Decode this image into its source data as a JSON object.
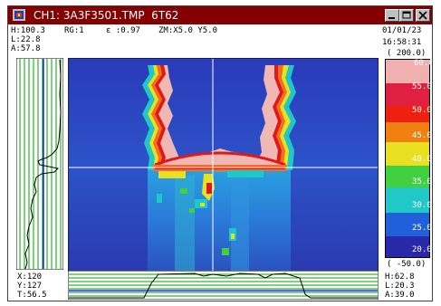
{
  "window": {
    "title": "CH1: 3A3F3501.TMP  6T62",
    "controls": {
      "minimize_icon": "minimize-icon",
      "maximize_icon": "maximize-icon",
      "close_icon": "close-icon"
    }
  },
  "header": {
    "high_readout": "H:100.3",
    "low_readout": "L:22.8",
    "avg_readout": "A:57.8",
    "range_readout": "RG:1",
    "emissivity_readout": "ε :0.97",
    "zoom_readout": "ZM:X5.0 Y5.0",
    "date": "01/01/23",
    "time": "16:58:31"
  },
  "scale": {
    "top_limit": "( 200.0)",
    "bottom_limit": "( -50.0)",
    "labels": [
      "60.0",
      "55.0",
      "50.0",
      "45.0",
      "40.0",
      "35.0",
      "30.0",
      "25.0",
      "20.0"
    ]
  },
  "cursor": {
    "x_readout": "X:120",
    "y_readout": "Y:127",
    "t_readout": "T:56.5"
  },
  "line_profile": {
    "high_readout": "H:62.8",
    "low_readout": "L:20.3",
    "avg_readout": "A:39.0"
  },
  "colors": {
    "title_bar": "#840000",
    "profile_lines": "#00a000",
    "cursor": "#ffffff",
    "plume": "#f0b8b4"
  }
}
